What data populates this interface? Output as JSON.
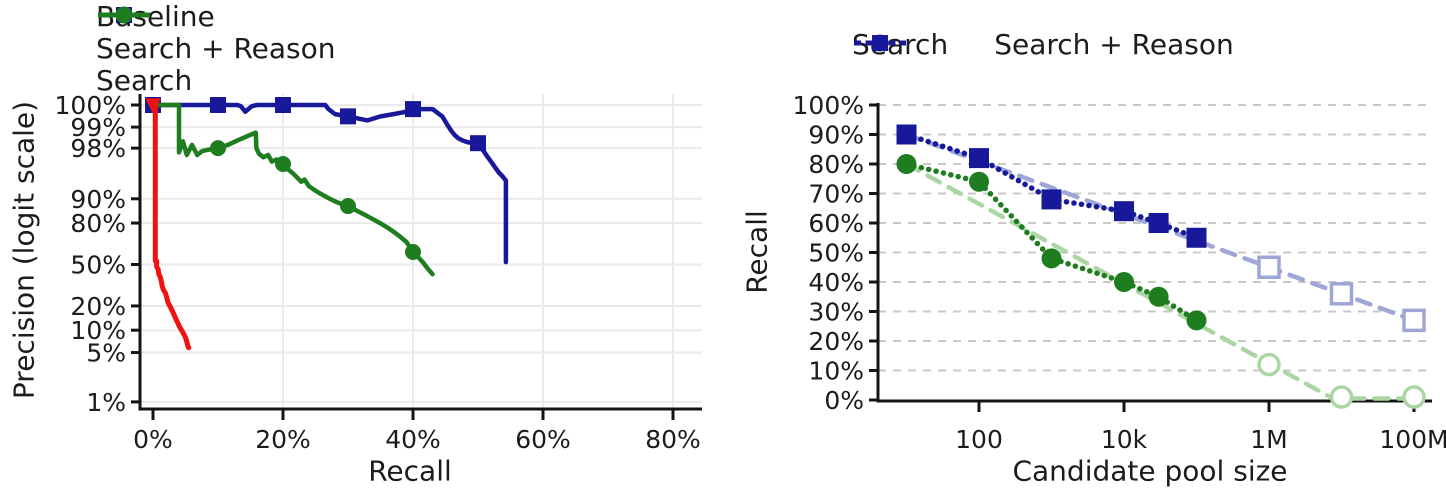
{
  "page": {
    "background": "#ffffff",
    "text_color": "#1c1c1c"
  },
  "colors": {
    "baseline_red": "#f21111",
    "search_green": "#1e7d1e",
    "reason_blue": "#18189b",
    "trend_light_green": "#abd6a4",
    "trend_light_blue": "#9ea6d8",
    "grid_solid": "#eaeaea",
    "grid_dashed": "#c8c8c8",
    "spine": "#141414"
  },
  "chart_data": [
    {
      "type": "line",
      "id": "precision-recall",
      "xlabel": "Recall",
      "ylabel": "Precision (logit scale)",
      "x_axis": {
        "min": 0,
        "max": 85,
        "scale": "linear",
        "ticks": [
          {
            "v": 0,
            "label": "0%"
          },
          {
            "v": 20,
            "label": "20%"
          },
          {
            "v": 40,
            "label": "40%"
          },
          {
            "v": 60,
            "label": "60%"
          },
          {
            "v": 80,
            "label": "80%"
          }
        ]
      },
      "y_axis": {
        "min": 1,
        "max": 100,
        "scale": "logit",
        "ticks": [
          {
            "v": 100,
            "label": "100%"
          },
          {
            "v": 99,
            "label": "99%"
          },
          {
            "v": 98,
            "label": "98%"
          },
          {
            "v": 90,
            "label": "90%"
          },
          {
            "v": 80,
            "label": "80%"
          },
          {
            "v": 50,
            "label": "50%"
          },
          {
            "v": 20,
            "label": "20%"
          },
          {
            "v": 10,
            "label": "10%"
          },
          {
            "v": 5,
            "label": "5%"
          },
          {
            "v": 1,
            "label": "1%"
          }
        ]
      },
      "legend": {
        "items": [
          {
            "label": "Baseline",
            "color": "#f21111",
            "marker": "triangle-down",
            "line": "solid"
          },
          {
            "label": "Search + Reason",
            "color": "#18189b",
            "marker": "square",
            "line": "solid"
          },
          {
            "label": "Search",
            "color": "#1e7d1e",
            "marker": "circle",
            "line": "solid"
          }
        ]
      },
      "series": [
        {
          "name": "Search + Reason",
          "color": "#18189b",
          "marker": "square",
          "width": 4.5,
          "marker_points": [
            [
              0,
              100
            ],
            [
              10,
              100
            ],
            [
              20,
              100
            ],
            [
              30,
              99.3
            ],
            [
              40,
              99.45
            ],
            [
              50,
              98.3
            ]
          ],
          "points": [
            [
              0,
              100
            ],
            [
              13,
              100
            ],
            [
              13.5,
              99.5
            ],
            [
              14.2,
              99.4
            ],
            [
              15.2,
              99.5
            ],
            [
              16,
              100
            ],
            [
              26.5,
              100
            ],
            [
              27,
              99.45
            ],
            [
              28,
              99.35
            ],
            [
              30,
              99.3
            ],
            [
              31.5,
              99.25
            ],
            [
              33,
              99.2
            ],
            [
              35,
              99.3
            ],
            [
              37,
              99.35
            ],
            [
              39,
              99.4
            ],
            [
              41,
              99.45
            ],
            [
              43,
              99.45
            ],
            [
              44.5,
              99.3
            ],
            [
              45.2,
              99.1
            ],
            [
              45.8,
              98.9
            ],
            [
              46.4,
              98.7
            ],
            [
              47,
              98.55
            ],
            [
              47.6,
              98.45
            ],
            [
              48.4,
              98.35
            ],
            [
              50,
              98.3
            ],
            [
              50.7,
              97.9
            ],
            [
              51.4,
              97.4
            ],
            [
              52,
              96.9
            ],
            [
              52.6,
              96.3
            ],
            [
              53.2,
              95.6
            ],
            [
              53.8,
              95.0
            ],
            [
              54.3,
              94.3
            ],
            [
              54.3,
              52
            ]
          ]
        },
        {
          "name": "Search",
          "color": "#1e7d1e",
          "marker": "circle",
          "width": 4.5,
          "marker_points": [
            [
              10,
              98
            ],
            [
              20,
              96.65
            ],
            [
              30,
              87.6
            ],
            [
              40,
              60.3
            ]
          ],
          "points": [
            [
              0,
              100
            ],
            [
              4,
              100
            ],
            [
              4,
              97.7
            ],
            [
              4.6,
              98.4
            ],
            [
              5.2,
              97.5
            ],
            [
              6,
              98.2
            ],
            [
              6.8,
              97.5
            ],
            [
              7.6,
              97.8
            ],
            [
              8.6,
              97.9
            ],
            [
              10,
              98
            ],
            [
              11.5,
              98.2
            ],
            [
              13,
              98.45
            ],
            [
              14.5,
              98.65
            ],
            [
              15.8,
              98.8
            ],
            [
              15.9,
              98.0
            ],
            [
              16.3,
              97.6
            ],
            [
              17,
              97.3
            ],
            [
              17.7,
              97.5
            ],
            [
              18.3,
              96.9
            ],
            [
              19,
              97.1
            ],
            [
              20,
              96.65
            ],
            [
              20.8,
              96.0
            ],
            [
              21.5,
              95.5
            ],
            [
              22.2,
              94.8
            ],
            [
              22.8,
              94.1
            ],
            [
              23.3,
              94.5
            ],
            [
              24,
              93.2
            ],
            [
              24.8,
              92.4
            ],
            [
              25.6,
              91.6
            ],
            [
              26.4,
              90.8
            ],
            [
              27.2,
              90.0
            ],
            [
              28,
              89.2
            ],
            [
              28.8,
              88.5
            ],
            [
              29.4,
              88.0
            ],
            [
              30,
              87.6
            ],
            [
              31,
              86.3
            ],
            [
              32,
              84.9
            ],
            [
              33,
              83.4
            ],
            [
              34,
              81.7
            ],
            [
              35,
              79.8
            ],
            [
              36,
              77.6
            ],
            [
              37,
              75.0
            ],
            [
              38,
              71.8
            ],
            [
              39,
              68.0
            ],
            [
              40,
              60.3
            ],
            [
              40.8,
              56
            ],
            [
              41.5,
              52
            ],
            [
              42.2,
              47
            ],
            [
              43,
              42
            ]
          ]
        },
        {
          "name": "Baseline",
          "color": "#f21111",
          "marker": "triangle-down",
          "width": 5,
          "marker_points": [
            [
              0,
              100
            ]
          ],
          "points": [
            [
              0,
              100
            ],
            [
              0.35,
              100
            ],
            [
              0.35,
              53
            ],
            [
              0.55,
              53
            ],
            [
              0.55,
              48
            ],
            [
              0.8,
              46
            ],
            [
              0.9,
              42
            ],
            [
              1.1,
              40
            ],
            [
              1.3,
              36
            ],
            [
              1.4,
              33
            ],
            [
              1.6,
              30
            ],
            [
              1.9,
              28
            ],
            [
              2.1,
              25
            ],
            [
              2.3,
              22
            ],
            [
              2.6,
              20
            ],
            [
              2.9,
              18
            ],
            [
              3.2,
              16
            ],
            [
              3.5,
              14
            ],
            [
              3.8,
              12.5
            ],
            [
              4.1,
              11
            ],
            [
              4.4,
              10
            ],
            [
              4.7,
              9
            ],
            [
              5.0,
              8
            ],
            [
              5.2,
              7
            ],
            [
              5.4,
              6
            ],
            [
              5.5,
              5.8
            ]
          ]
        }
      ]
    },
    {
      "type": "line",
      "id": "recall-vs-pool-size",
      "xlabel": "Candidate pool size",
      "ylabel": "Recall",
      "x_axis": {
        "min": 10,
        "max": 100000000,
        "scale": "log",
        "ticks": [
          {
            "v": 100,
            "label": "100"
          },
          {
            "v": 10000,
            "label": "10k"
          },
          {
            "v": 1000000,
            "label": "1M"
          },
          {
            "v": 100000000,
            "label": "100M"
          }
        ]
      },
      "y_axis": {
        "min": 0,
        "max": 100,
        "scale": "linear",
        "ticks": [
          {
            "v": 0,
            "label": "0%"
          },
          {
            "v": 10,
            "label": "10%"
          },
          {
            "v": 20,
            "label": "20%"
          },
          {
            "v": 30,
            "label": "30%"
          },
          {
            "v": 40,
            "label": "40%"
          },
          {
            "v": 50,
            "label": "50%"
          },
          {
            "v": 60,
            "label": "60%"
          },
          {
            "v": 70,
            "label": "70%"
          },
          {
            "v": 80,
            "label": "80%"
          },
          {
            "v": 90,
            "label": "90%"
          },
          {
            "v": 100,
            "label": "100%"
          }
        ]
      },
      "legend": {
        "items": [
          {
            "label": "Search",
            "color": "#1e7d1e",
            "marker": "circle",
            "line": "dashed"
          },
          {
            "label": "Search + Reason",
            "color": "#18189b",
            "marker": "square",
            "line": "dashed"
          }
        ]
      },
      "series": [
        {
          "name": "Search trend",
          "color": "#abd6a4",
          "style": "trend",
          "width": 4.5,
          "points": [
            [
              10,
              80
            ],
            [
              7600000,
              0.5
            ],
            [
              100000000,
              0.5
            ]
          ]
        },
        {
          "name": "Search + Reason trend",
          "color": "#9ea6d8",
          "style": "trend",
          "width": 4.5,
          "points": [
            [
              10,
              90
            ],
            [
              100000000,
              27
            ]
          ]
        },
        {
          "name": "Search",
          "color": "#1e7d1e",
          "marker": "circle",
          "style": "dotted",
          "width": 5,
          "points": [
            [
              10,
              80
            ],
            [
              100,
              74
            ],
            [
              1000,
              48
            ],
            [
              10000,
              40
            ],
            [
              30000,
              35
            ],
            [
              100000,
              27
            ]
          ]
        },
        {
          "name": "Search + Reason",
          "color": "#18189b",
          "marker": "square",
          "style": "dotted",
          "width": 5,
          "points": [
            [
              10,
              90
            ],
            [
              100,
              82
            ],
            [
              1000,
              68
            ],
            [
              10000,
              64
            ],
            [
              30000,
              60
            ],
            [
              100000,
              55
            ]
          ]
        },
        {
          "name": "Search extrapolated",
          "color": "#abd6a4",
          "marker": "circle",
          "hollow": true,
          "points": [
            [
              1000000,
              12
            ],
            [
              10000000,
              1
            ],
            [
              100000000,
              1
            ]
          ]
        },
        {
          "name": "Search + Reason extrapolated",
          "color": "#9ea6d8",
          "marker": "square",
          "hollow": true,
          "points": [
            [
              1000000,
              45
            ],
            [
              10000000,
              36
            ],
            [
              100000000,
              27
            ]
          ]
        }
      ]
    }
  ]
}
